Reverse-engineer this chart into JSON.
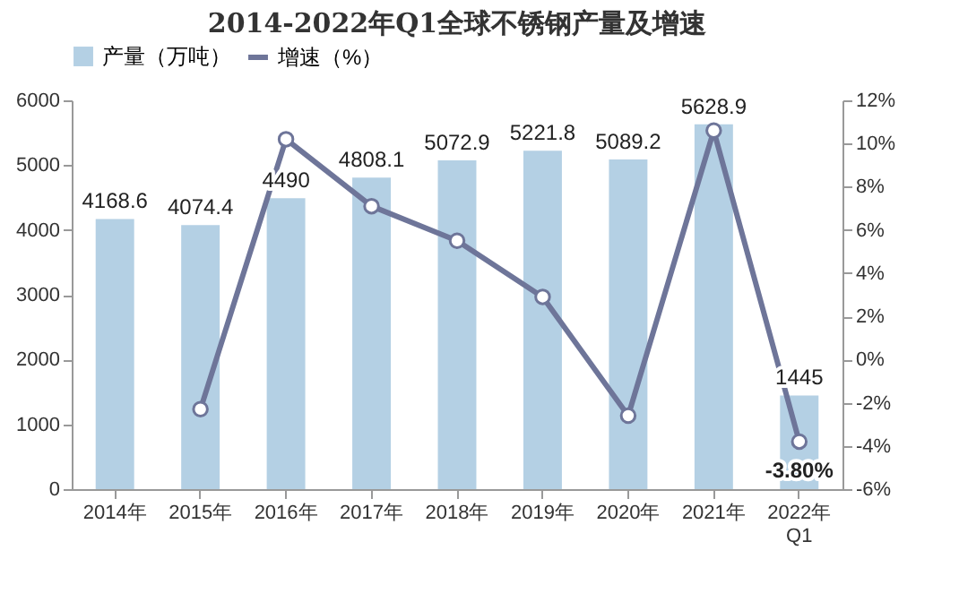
{
  "chart_data": {
    "type": "bar",
    "title": "2014-2022年Q1全球不锈钢产量及增速",
    "categories": [
      "2014年",
      "2015年",
      "2016年",
      "2017年",
      "2018年",
      "2019年",
      "2020年",
      "2021年",
      "2022年\nQ1"
    ],
    "series": [
      {
        "name": "产量（万吨）",
        "color": "#b4d0e4",
        "values": [
          4168.6,
          4074.4,
          4490,
          4808.1,
          5072.9,
          5221.8,
          5089.2,
          5628.9,
          1445
        ]
      },
      {
        "name": "增速（%）",
        "type": "line",
        "axis": "y2",
        "color": "#6e7599",
        "marker": "circle",
        "values": [
          null,
          -2.3,
          10.2,
          7.1,
          5.5,
          2.9,
          -2.6,
          10.6,
          -3.8
        ],
        "value_labels": [
          null,
          null,
          null,
          null,
          null,
          null,
          null,
          null,
          "-3.80%"
        ]
      }
    ],
    "data_labels": true,
    "ylim": [
      0,
      6000
    ],
    "yticks": [
      0,
      1000,
      2000,
      3000,
      4000,
      5000,
      6000
    ],
    "y2lim": [
      -6,
      12
    ],
    "y2ticks": [
      {
        "value": -6,
        "label": "-6%"
      },
      {
        "value": -4,
        "label": "-4%"
      },
      {
        "value": -2,
        "label": "-2%"
      },
      {
        "value": 0,
        "label": "0%"
      },
      {
        "value": 2,
        "label": "2%"
      },
      {
        "value": 4,
        "label": "4%"
      },
      {
        "value": 6,
        "label": "6%"
      },
      {
        "value": 8,
        "label": "8%"
      },
      {
        "value": 10,
        "label": "10%"
      },
      {
        "value": 12,
        "label": "12%"
      }
    ],
    "legend": "top",
    "grid": false
  }
}
